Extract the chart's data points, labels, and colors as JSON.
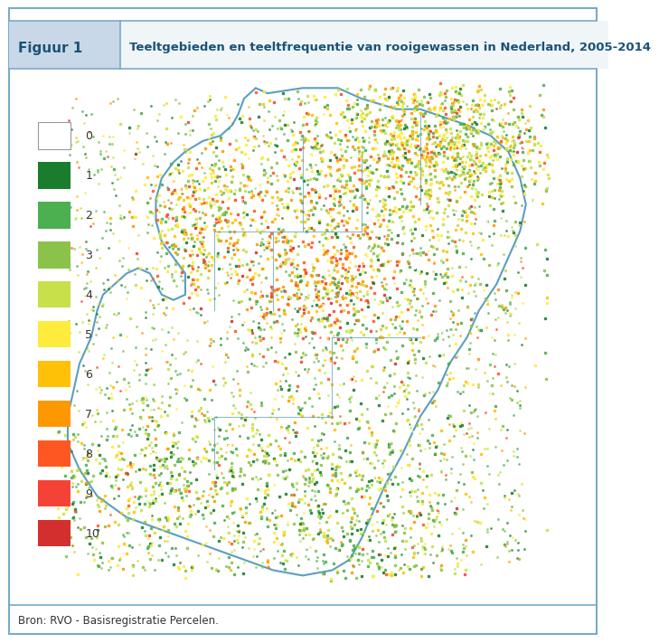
{
  "figuur_label": "Figuur 1",
  "title": "Teeltgebieden en teeltfrequentie van rooigewassen in Nederland, 2005-2014",
  "source": "Bron: RVO - Basisregistratie Percelen.",
  "legend_labels": [
    "0",
    "1",
    "2",
    "3",
    "4",
    "5",
    "6",
    "7",
    "8",
    "9",
    "10"
  ],
  "legend_colors": [
    "#ffffff",
    "#1a7d2e",
    "#4caf50",
    "#8bc34a",
    "#c8e04a",
    "#ffeb3b",
    "#ffc107",
    "#ff9800",
    "#ff5722",
    "#f44336",
    "#d32f2f"
  ],
  "header_bg": "#c8d8e8",
  "border_color": "#7aaac8",
  "outer_bg": "#ffffff",
  "figuur_label_color": "#1a5276",
  "title_color": "#1a5276",
  "source_color": "#333333",
  "fig_width": 6.63,
  "fig_height": 7.06
}
